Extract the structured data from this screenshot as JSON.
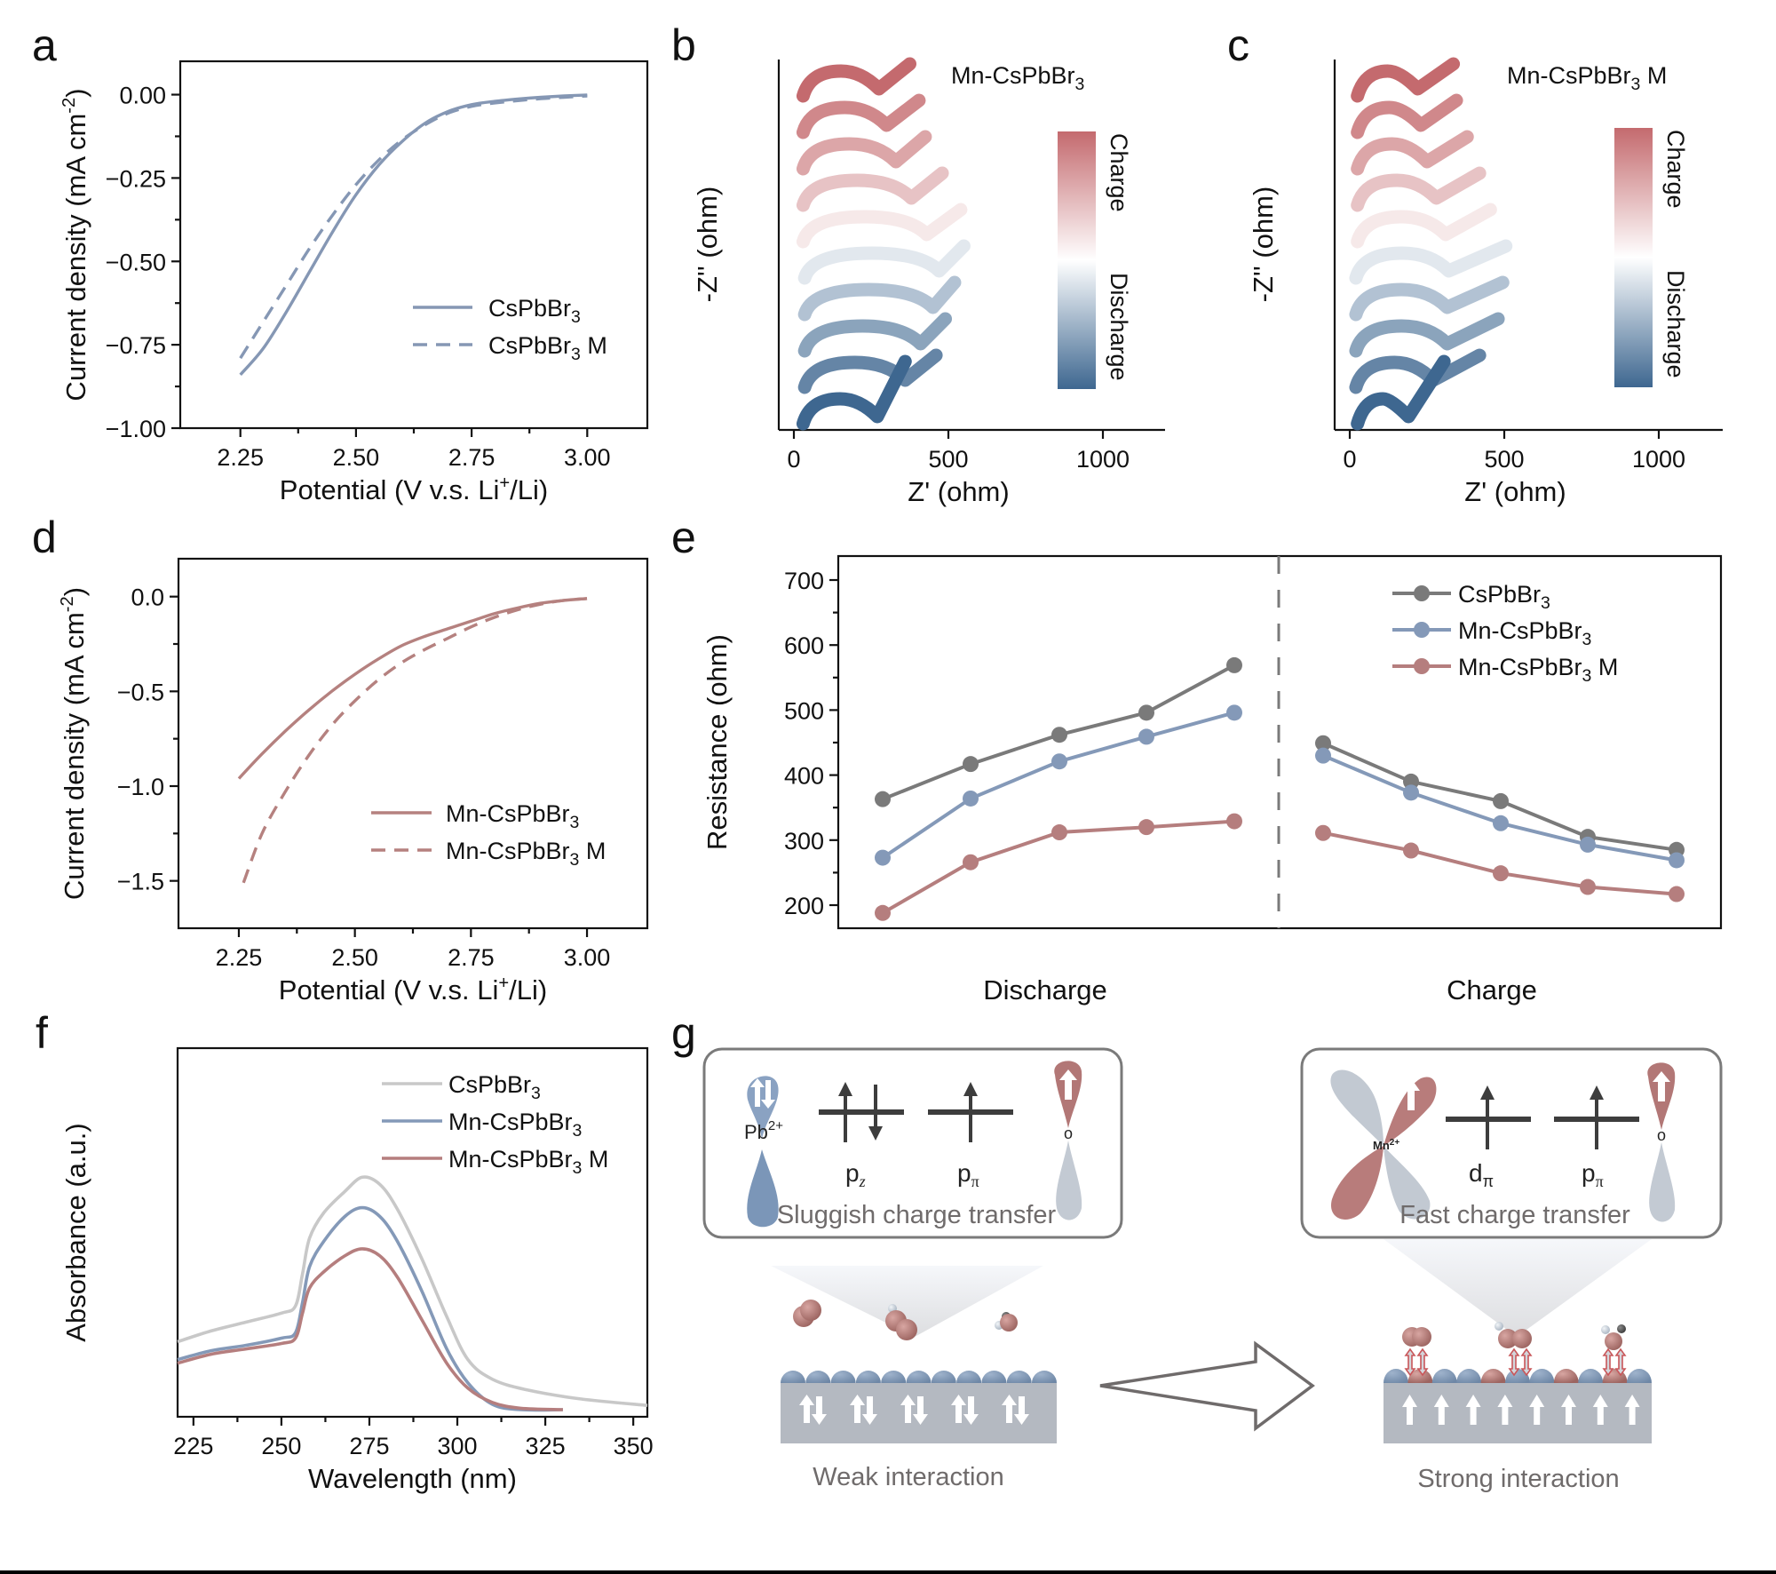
{
  "figure": {
    "panel_labels": [
      "a",
      "b",
      "c",
      "d",
      "e",
      "f",
      "g"
    ]
  },
  "colors": {
    "blue_line": "#8597b4",
    "rose_line": "#b5817f",
    "gray_series": "#7a7a7a",
    "blue_series": "#8499b8",
    "rose_series": "#b57e7e",
    "light_gray": "#c8c8c8",
    "charge_top": "#c46a6e",
    "discharge_bottom": "#3e6790"
  },
  "chart_data": [
    {
      "id": "a",
      "type": "line",
      "xlabel": "Potential (V v.s. Li+/Li)",
      "ylabel": "Current density (mA cm-2)",
      "xlim": [
        2.12,
        3.13
      ],
      "ylim": [
        -1.0,
        0.1
      ],
      "xticks": [
        2.25,
        2.5,
        2.75,
        3.0
      ],
      "xtick_labels": [
        "2.25",
        "2.50",
        "2.75",
        "3.00"
      ],
      "yticks": [
        0.0,
        -0.25,
        -0.5,
        -0.75,
        -1.0
      ],
      "ytick_labels": [
        "0.00",
        "−0.25",
        "−0.50",
        "−0.75",
        "−1.00"
      ],
      "legend": "center-right",
      "series": [
        {
          "name": "CsPbBr3",
          "style": "solid",
          "x": [
            2.25,
            2.3,
            2.35,
            2.4,
            2.45,
            2.5,
            2.55,
            2.6,
            2.65,
            2.7,
            2.75,
            2.8,
            2.85,
            2.9,
            2.95,
            3.0
          ],
          "y": [
            -0.84,
            -0.76,
            -0.65,
            -0.53,
            -0.41,
            -0.3,
            -0.21,
            -0.14,
            -0.085,
            -0.05,
            -0.03,
            -0.02,
            -0.013,
            -0.008,
            -0.004,
            -0.001
          ]
        },
        {
          "name": "CsPbBr3 M",
          "style": "dashed",
          "x": [
            2.25,
            2.3,
            2.35,
            2.4,
            2.45,
            2.5,
            2.55,
            2.6,
            2.65,
            2.7,
            2.75,
            2.8,
            2.85,
            2.9,
            2.95,
            3.0
          ],
          "y": [
            -0.79,
            -0.68,
            -0.57,
            -0.46,
            -0.36,
            -0.27,
            -0.195,
            -0.135,
            -0.09,
            -0.055,
            -0.035,
            -0.025,
            -0.018,
            -0.012,
            -0.008,
            -0.004
          ]
        }
      ]
    },
    {
      "id": "b",
      "type": "scatter",
      "title": "Mn-CsPbBr3",
      "xlabel": "Z' (ohm)",
      "ylabel": "-Z'' (ohm)",
      "xlim": [
        -50,
        1230
      ],
      "xticks": [
        0,
        500,
        1000
      ],
      "xtick_labels": [
        "0",
        "500",
        "1000"
      ],
      "colorbar": {
        "top_label": "Charge",
        "bottom_label": "Discharge"
      },
      "curves_top_to_bottom": [
        {
          "state": "charge",
          "shade": 1.0,
          "x_start": 30,
          "x_valley": 275,
          "x_end": 375
        },
        {
          "state": "charge",
          "shade": 0.8,
          "x_start": 30,
          "x_valley": 300,
          "x_end": 405
        },
        {
          "state": "charge",
          "shade": 0.6,
          "x_start": 30,
          "x_valley": 330,
          "x_end": 425
        },
        {
          "state": "charge",
          "shade": 0.4,
          "x_start": 30,
          "x_valley": 380,
          "x_end": 480
        },
        {
          "state": "charge",
          "shade": 0.15,
          "x_start": 30,
          "x_valley": 430,
          "x_end": 540
        },
        {
          "state": "discharge",
          "shade": 0.15,
          "x_start": 35,
          "x_valley": 470,
          "x_end": 550
        },
        {
          "state": "discharge",
          "shade": 0.4,
          "x_start": 35,
          "x_valley": 450,
          "x_end": 520
        },
        {
          "state": "discharge",
          "shade": 0.6,
          "x_start": 35,
          "x_valley": 410,
          "x_end": 490
        },
        {
          "state": "discharge",
          "shade": 0.8,
          "x_start": 35,
          "x_valley": 360,
          "x_end": 460
        },
        {
          "state": "discharge",
          "shade": 1.0,
          "x_start": 30,
          "x_valley": 270,
          "x_end": 360
        }
      ]
    },
    {
      "id": "c",
      "type": "scatter",
      "title": "Mn-CsPbBr3 M",
      "xlabel": "Z' (ohm)",
      "ylabel": "-Z'' (ohm)",
      "xlim": [
        -50,
        1230
      ],
      "xticks": [
        0,
        500,
        1000
      ],
      "xtick_labels": [
        "0",
        "500",
        "1000"
      ],
      "colorbar": {
        "top_label": "Charge",
        "bottom_label": "Discharge"
      },
      "curves_top_to_bottom": [
        {
          "state": "charge",
          "shade": 1.0,
          "x_start": 25,
          "x_valley": 220,
          "x_end": 335
        },
        {
          "state": "charge",
          "shade": 0.8,
          "x_start": 25,
          "x_valley": 230,
          "x_end": 345
        },
        {
          "state": "charge",
          "shade": 0.6,
          "x_start": 25,
          "x_valley": 250,
          "x_end": 380
        },
        {
          "state": "charge",
          "shade": 0.4,
          "x_start": 25,
          "x_valley": 280,
          "x_end": 420
        },
        {
          "state": "charge",
          "shade": 0.15,
          "x_start": 25,
          "x_valley": 310,
          "x_end": 455
        },
        {
          "state": "discharge",
          "shade": 0.15,
          "x_start": 20,
          "x_valley": 320,
          "x_end": 505
        },
        {
          "state": "discharge",
          "shade": 0.4,
          "x_start": 20,
          "x_valley": 315,
          "x_end": 495
        },
        {
          "state": "discharge",
          "shade": 0.6,
          "x_start": 20,
          "x_valley": 315,
          "x_end": 480
        },
        {
          "state": "discharge",
          "shade": 0.8,
          "x_start": 20,
          "x_valley": 270,
          "x_end": 420
        },
        {
          "state": "discharge",
          "shade": 1.0,
          "x_start": 25,
          "x_valley": 190,
          "x_end": 305
        }
      ]
    },
    {
      "id": "d",
      "type": "line",
      "xlabel": "Potential (V v.s. Li+/Li)",
      "ylabel": "Current density (mA cm-2)",
      "xlim": [
        2.12,
        3.13
      ],
      "ylim": [
        -1.75,
        0.2
      ],
      "xticks": [
        2.25,
        2.5,
        2.75,
        3.0
      ],
      "xtick_labels": [
        "2.25",
        "2.50",
        "2.75",
        "3.00"
      ],
      "yticks": [
        0.0,
        -0.5,
        -1.0,
        -1.5
      ],
      "ytick_labels": [
        "0.0",
        "−0.5",
        "−1.0",
        "−1.5"
      ],
      "legend": "lower-right",
      "series": [
        {
          "name": "Mn-CsPbBr3",
          "style": "solid",
          "x": [
            2.25,
            2.3,
            2.35,
            2.4,
            2.45,
            2.5,
            2.55,
            2.6,
            2.65,
            2.7,
            2.75,
            2.8,
            2.85,
            2.9,
            2.95,
            3.0
          ],
          "y": [
            -0.96,
            -0.83,
            -0.71,
            -0.6,
            -0.5,
            -0.41,
            -0.33,
            -0.26,
            -0.21,
            -0.17,
            -0.13,
            -0.09,
            -0.06,
            -0.035,
            -0.02,
            -0.01
          ]
        },
        {
          "name": "Mn-CsPbBr3 M",
          "style": "dashed",
          "x": [
            2.26,
            2.3,
            2.35,
            2.4,
            2.45,
            2.5,
            2.55,
            2.6,
            2.65,
            2.7,
            2.75,
            2.8,
            2.85,
            2.9,
            2.95,
            3.0
          ],
          "y": [
            -1.51,
            -1.25,
            -1.03,
            -0.84,
            -0.68,
            -0.55,
            -0.44,
            -0.35,
            -0.28,
            -0.22,
            -0.16,
            -0.11,
            -0.07,
            -0.04,
            -0.02,
            -0.01
          ]
        }
      ]
    },
    {
      "id": "e",
      "type": "line",
      "ylabel": "Resistance (ohm)",
      "ylim": [
        165,
        740
      ],
      "yticks": [
        200,
        300,
        400,
        500,
        600,
        700
      ],
      "ytick_labels": [
        "200",
        "300",
        "400",
        "500",
        "600",
        "700"
      ],
      "group_labels": [
        "Discharge",
        "Charge"
      ],
      "legend": "top-right",
      "series": [
        {
          "name": "CsPbBr3",
          "discharge": [
            363,
            417,
            462,
            496,
            569
          ],
          "charge": [
            449,
            390,
            360,
            305,
            285
          ]
        },
        {
          "name": "Mn-CsPbBr3",
          "discharge": [
            273,
            364,
            421,
            459,
            496
          ],
          "charge": [
            430,
            373,
            326,
            293,
            269
          ]
        },
        {
          "name": "Mn-CsPbBr3 M",
          "discharge": [
            188,
            266,
            312,
            320,
            329
          ],
          "charge": [
            311,
            284,
            249,
            228,
            217
          ]
        }
      ]
    },
    {
      "id": "f",
      "type": "line",
      "xlabel": "Wavelength (nm)",
      "ylabel": "Absorbance (a.u.)",
      "xlim": [
        220.5,
        354
      ],
      "ylim": [
        0,
        1.0
      ],
      "xticks": [
        225,
        250,
        275,
        300,
        325,
        350
      ],
      "xtick_labels": [
        "225",
        "250",
        "275",
        "300",
        "325",
        "350"
      ],
      "legend": "top-right",
      "series": [
        {
          "name": "CsPbBr3",
          "x": [
            220.5,
            230,
            240,
            250,
            254,
            256,
            258,
            262,
            268,
            273,
            278,
            283,
            290,
            297,
            303,
            310,
            320,
            335,
            354
          ],
          "y": [
            0.19,
            0.22,
            0.245,
            0.27,
            0.29,
            0.38,
            0.48,
            0.55,
            0.61,
            0.65,
            0.63,
            0.56,
            0.42,
            0.26,
            0.14,
            0.085,
            0.055,
            0.03,
            0.012
          ]
        },
        {
          "name": "Mn-CsPbBr3",
          "x": [
            220.5,
            230,
            240,
            250,
            254,
            256,
            258,
            262,
            268,
            273,
            278,
            283,
            290,
            297,
            303,
            310,
            318,
            330
          ],
          "y": [
            0.14,
            0.165,
            0.18,
            0.2,
            0.215,
            0.3,
            0.4,
            0.47,
            0.54,
            0.565,
            0.54,
            0.47,
            0.33,
            0.17,
            0.075,
            0.015,
            0.0,
            0.0
          ]
        },
        {
          "name": "Mn-CsPbBr3 M",
          "x": [
            220.5,
            230,
            240,
            250,
            254,
            256,
            258,
            262,
            268,
            273,
            278,
            283,
            290,
            297,
            303,
            310,
            318,
            330
          ],
          "y": [
            0.13,
            0.155,
            0.17,
            0.185,
            0.2,
            0.27,
            0.34,
            0.385,
            0.43,
            0.45,
            0.43,
            0.37,
            0.25,
            0.13,
            0.06,
            0.02,
            0.004,
            0.0
          ]
        }
      ]
    }
  ],
  "panel_g": {
    "left_box_caption": "Sluggish charge transfer",
    "right_box_caption": "Fast charge transfer",
    "left_ion_label": "Pb",
    "left_ion_charge": "2+",
    "right_ion_label": "Mn",
    "right_ion_charge": "2+",
    "oxygen_label": "o",
    "left_orbitals": [
      {
        "symbol": "p",
        "sub": "z",
        "electrons": "up-down"
      },
      {
        "symbol": "p",
        "sub": "π",
        "electrons": "up"
      }
    ],
    "right_orbitals": [
      {
        "symbol": "d",
        "sub": "π",
        "electrons": "up"
      },
      {
        "symbol": "p",
        "sub": "π",
        "electrons": "up"
      }
    ],
    "left_surface_caption": "Weak interaction",
    "right_surface_caption": "Strong interaction",
    "left_spin_pairs": 5,
    "right_spin_arrows": 8
  }
}
